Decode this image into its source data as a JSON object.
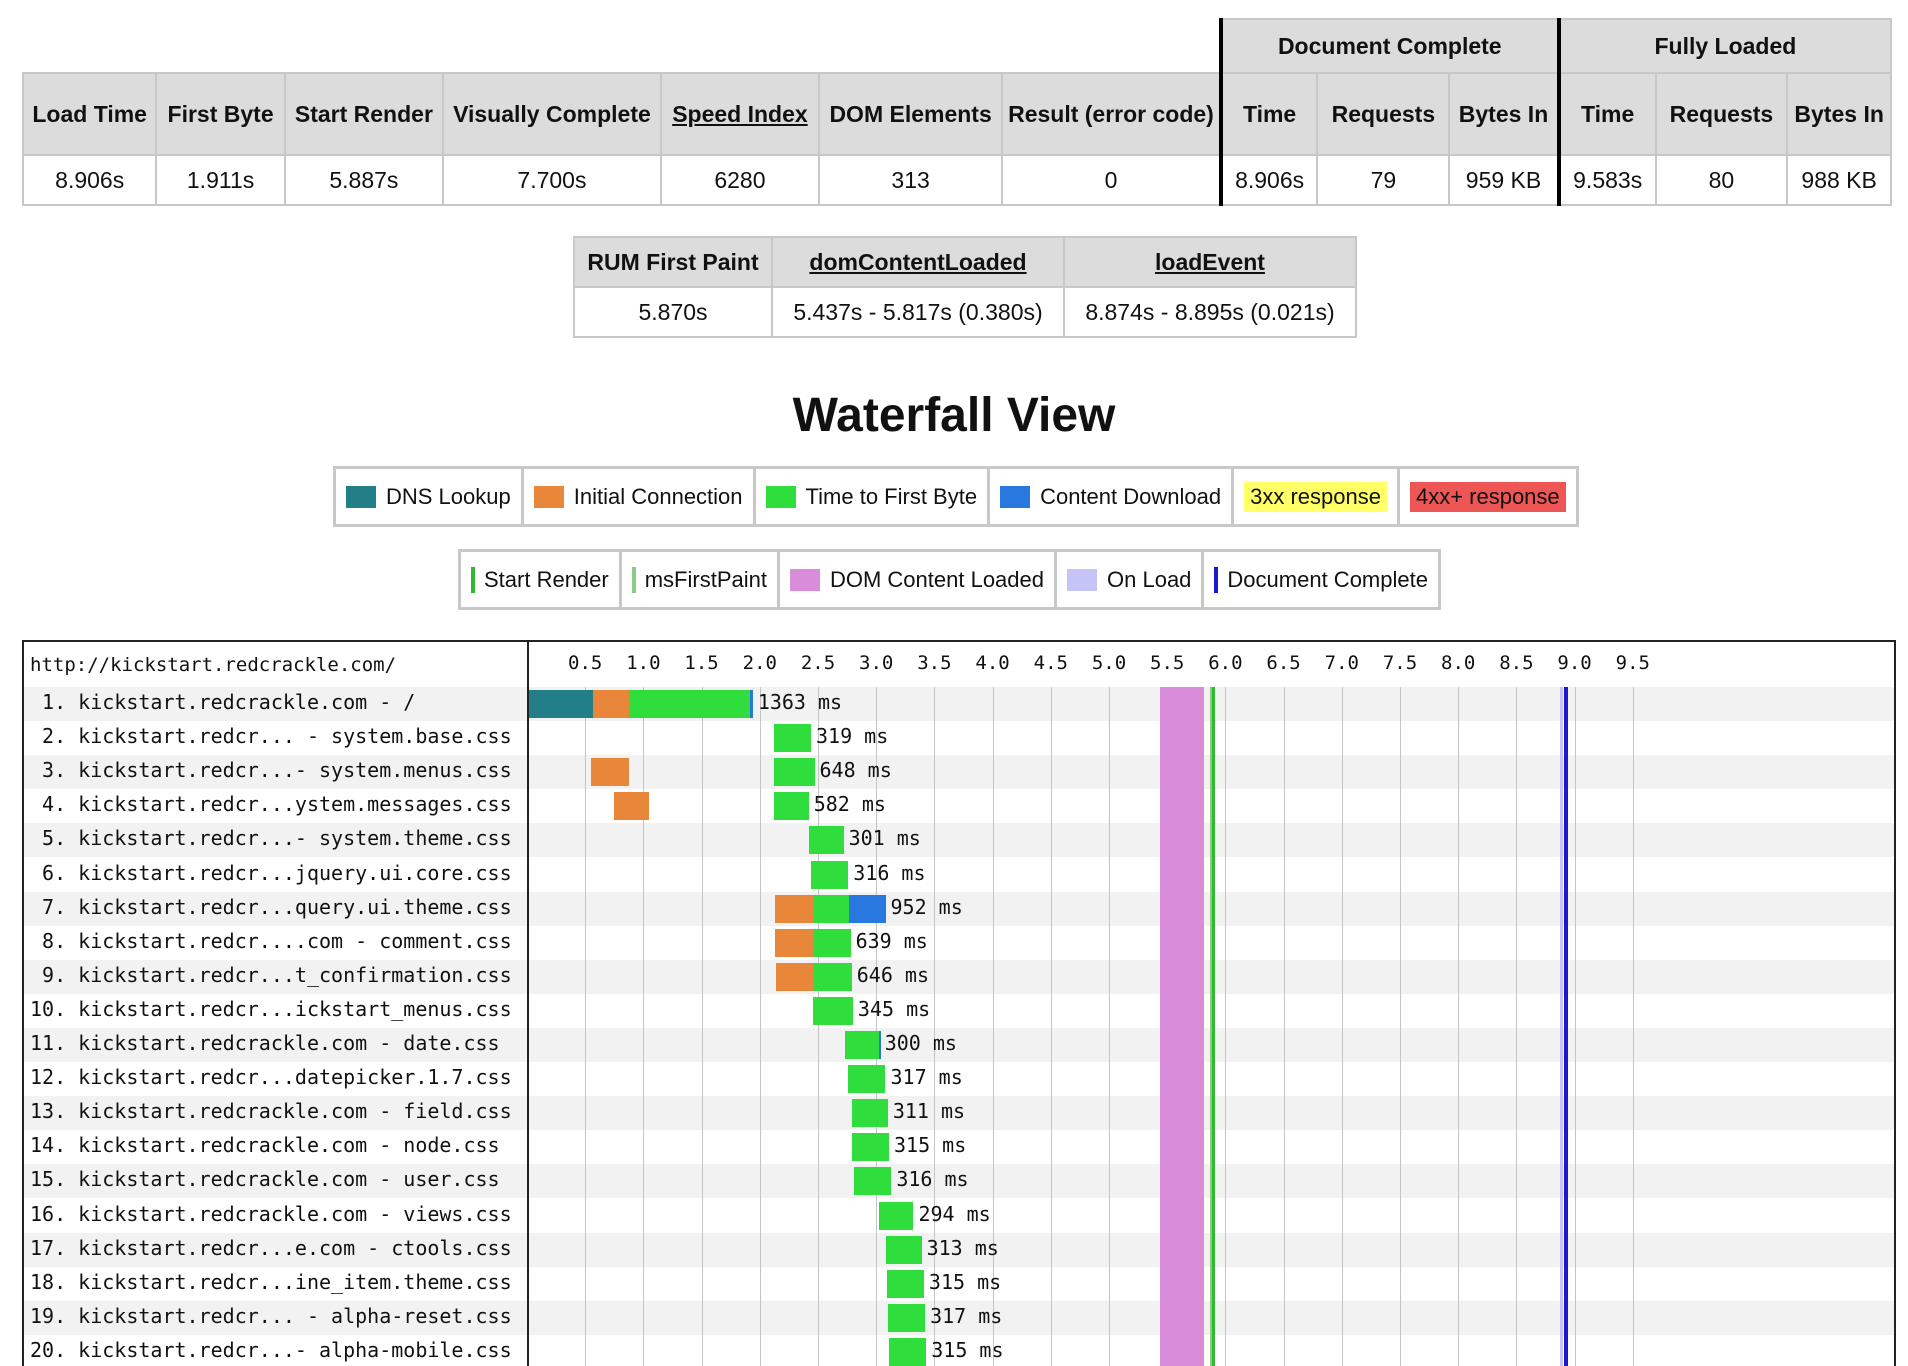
{
  "results": {
    "group_headers": {
      "document_complete": "Document Complete",
      "fully_loaded": "Fully Loaded"
    },
    "columns": {
      "load_time": "Load Time",
      "first_byte": "First Byte",
      "start_render": "Start Render",
      "visually_complete": "Visually Complete",
      "speed_index": "Speed Index",
      "dom_elements": "DOM Elements",
      "result": "Result (error code)",
      "dc_time": "Time",
      "dc_requests": "Requests",
      "dc_bytes": "Bytes In",
      "fl_time": "Time",
      "fl_requests": "Requests",
      "fl_bytes": "Bytes In"
    },
    "values": {
      "load_time": "8.906s",
      "first_byte": "1.911s",
      "start_render": "5.887s",
      "visually_complete": "7.700s",
      "speed_index": "6280",
      "dom_elements": "313",
      "result": "0",
      "dc_time": "8.906s",
      "dc_requests": "79",
      "dc_bytes": "959 KB",
      "fl_time": "9.583s",
      "fl_requests": "80",
      "fl_bytes": "988 KB"
    }
  },
  "rum": {
    "headers": {
      "first_paint": "RUM First Paint",
      "dom_content_loaded": "domContentLoaded",
      "load_event": "loadEvent"
    },
    "values": {
      "first_paint": "5.870s",
      "dom_content_loaded": "5.437s - 5.817s (0.380s)",
      "load_event": "8.874s - 8.895s (0.021s)"
    }
  },
  "waterfall_title": "Waterfall View",
  "legend_primary": [
    {
      "label": "DNS Lookup",
      "color": "#237f87"
    },
    {
      "label": "Initial Connection",
      "color": "#e8873a"
    },
    {
      "label": "Time to First Byte",
      "color": "#2fdd3c"
    },
    {
      "label": "Content Download",
      "color": "#2878e0"
    },
    {
      "label": "3xx response",
      "color": "#ffff66"
    },
    {
      "label": "4xx+ response",
      "color": "#ee5555"
    }
  ],
  "legend_events": [
    {
      "label": "Start Render",
      "color": "#33b833",
      "kind": "line"
    },
    {
      "label": "msFirstPaint",
      "color": "#88cc88",
      "kind": "line"
    },
    {
      "label": "DOM Content Loaded",
      "color": "#d98cd9",
      "kind": "swatch"
    },
    {
      "label": "On Load",
      "color": "#c4c4f7",
      "kind": "swatch"
    },
    {
      "label": "Document Complete",
      "color": "#1a1acc",
      "kind": "line"
    }
  ],
  "waterfall": {
    "url": "http://kickstart.redcrackle.com/",
    "ticks": [
      "0.5",
      "1.0",
      "1.5",
      "2.0",
      "2.5",
      "3.0",
      "3.5",
      "4.0",
      "4.5",
      "5.0",
      "5.5",
      "6.0",
      "6.5",
      "7.0",
      "7.5",
      "8.0",
      "8.5",
      "9.0",
      "9.5"
    ],
    "events": {
      "dom_content_loaded": [
        5.437,
        5.817
      ],
      "start_render": 5.887,
      "ms_first_paint": 5.87,
      "load_event": [
        8.874,
        8.895
      ],
      "document_complete": 8.906
    },
    "requests": [
      {
        "label": " 1. kickstart.redcrackle.com - /",
        "time": "1363 ms",
        "segments": [
          {
            "type": "dns",
            "start": 0.0,
            "end": 0.57
          },
          {
            "type": "connect",
            "start": 0.57,
            "end": 0.88
          },
          {
            "type": "ttfb",
            "start": 0.88,
            "end": 1.92
          },
          {
            "type": "download",
            "start": 1.92,
            "end": 1.94
          }
        ]
      },
      {
        "label": " 2. kickstart.redcr... - system.base.css",
        "time": "319 ms",
        "segments": [
          {
            "type": "ttfb",
            "start": 2.12,
            "end": 2.44
          }
        ]
      },
      {
        "label": " 3. kickstart.redcr...- system.menus.css",
        "time": "648 ms",
        "segments": [
          {
            "type": "connect",
            "start": 0.55,
            "end": 0.88
          },
          {
            "type": "ttfb",
            "start": 2.12,
            "end": 2.47
          }
        ]
      },
      {
        "label": " 4. kickstart.redcr...ystem.messages.css",
        "time": "582 ms",
        "segments": [
          {
            "type": "connect",
            "start": 0.75,
            "end": 1.05
          },
          {
            "type": "ttfb",
            "start": 2.12,
            "end": 2.42
          }
        ]
      },
      {
        "label": " 5. kickstart.redcr...- system.theme.css",
        "time": "301 ms",
        "segments": [
          {
            "type": "ttfb",
            "start": 2.42,
            "end": 2.72
          }
        ]
      },
      {
        "label": " 6. kickstart.redcr...jquery.ui.core.css",
        "time": "316 ms",
        "segments": [
          {
            "type": "ttfb",
            "start": 2.44,
            "end": 2.76
          }
        ]
      },
      {
        "label": " 7. kickstart.redcr...query.ui.theme.css",
        "time": "952 ms",
        "segments": [
          {
            "type": "connect",
            "start": 2.13,
            "end": 2.46
          },
          {
            "type": "ttfb",
            "start": 2.46,
            "end": 2.77
          },
          {
            "type": "download",
            "start": 2.77,
            "end": 3.08
          }
        ]
      },
      {
        "label": " 8. kickstart.redcr....com - comment.css",
        "time": "639 ms",
        "segments": [
          {
            "type": "connect",
            "start": 2.13,
            "end": 2.46
          },
          {
            "type": "ttfb",
            "start": 2.46,
            "end": 2.78
          }
        ]
      },
      {
        "label": " 9. kickstart.redcr...t_confirmation.css",
        "time": "646 ms",
        "segments": [
          {
            "type": "connect",
            "start": 2.14,
            "end": 2.46
          },
          {
            "type": "ttfb",
            "start": 2.46,
            "end": 2.79
          }
        ]
      },
      {
        "label": "10. kickstart.redcr...ickstart_menus.css",
        "time": "345 ms",
        "segments": [
          {
            "type": "ttfb",
            "start": 2.46,
            "end": 2.8
          }
        ]
      },
      {
        "label": "11. kickstart.redcrackle.com - date.css",
        "time": "300 ms",
        "segments": [
          {
            "type": "ttfb",
            "start": 2.73,
            "end": 3.02
          },
          {
            "type": "download",
            "start": 3.02,
            "end": 3.03
          }
        ]
      },
      {
        "label": "12. kickstart.redcr...datepicker.1.7.css",
        "time": "317 ms",
        "segments": [
          {
            "type": "ttfb",
            "start": 2.76,
            "end": 3.08
          }
        ]
      },
      {
        "label": "13. kickstart.redcrackle.com - field.css",
        "time": "311 ms",
        "segments": [
          {
            "type": "ttfb",
            "start": 2.79,
            "end": 3.1
          }
        ]
      },
      {
        "label": "14. kickstart.redcrackle.com - node.css",
        "time": "315 ms",
        "segments": [
          {
            "type": "ttfb",
            "start": 2.79,
            "end": 3.11
          }
        ]
      },
      {
        "label": "15. kickstart.redcrackle.com - user.css",
        "time": "316 ms",
        "segments": [
          {
            "type": "ttfb",
            "start": 2.81,
            "end": 3.13
          }
        ]
      },
      {
        "label": "16. kickstart.redcrackle.com - views.css",
        "time": "294 ms",
        "segments": [
          {
            "type": "ttfb",
            "start": 3.02,
            "end": 3.32
          }
        ]
      },
      {
        "label": "17. kickstart.redcr...e.com - ctools.css",
        "time": "313 ms",
        "segments": [
          {
            "type": "ttfb",
            "start": 3.08,
            "end": 3.39
          }
        ]
      },
      {
        "label": "18. kickstart.redcr...ine_item.theme.css",
        "time": "315 ms",
        "segments": [
          {
            "type": "ttfb",
            "start": 3.09,
            "end": 3.41
          }
        ]
      },
      {
        "label": "19. kickstart.redcr... - alpha-reset.css",
        "time": "317 ms",
        "segments": [
          {
            "type": "ttfb",
            "start": 3.1,
            "end": 3.42
          }
        ]
      },
      {
        "label": "20. kickstart.redcr...- alpha-mobile.css",
        "time": "315 ms",
        "segments": [
          {
            "type": "ttfb",
            "start": 3.11,
            "end": 3.43
          }
        ]
      }
    ]
  }
}
